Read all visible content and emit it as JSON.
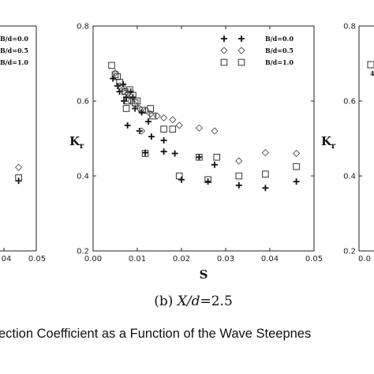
{
  "chart_data": [
    {
      "panel": "left (cropped)",
      "type": "scatter",
      "x_tick_labels_visible": [
        "04",
        "0.05"
      ],
      "legend_entries_visible": [
        "B/d=0.0",
        "B/d=0.5",
        "B/d=1.0"
      ],
      "series": [
        {
          "name": "B/d=0.0",
          "marker": "plus",
          "points": [
            [
              0.046,
              0.387
            ]
          ]
        },
        {
          "name": "B/d=0.5",
          "marker": "diamond",
          "points": [
            [
              0.046,
              0.423
            ]
          ]
        },
        {
          "name": "B/d=1.0",
          "marker": "square",
          "points": [
            [
              0.046,
              0.395
            ]
          ]
        }
      ]
    },
    {
      "panel": "b",
      "type": "scatter",
      "subtitle_prefix": "(b)",
      "subtitle_var": "X/d",
      "subtitle_value": "=2.5",
      "xlabel": "S",
      "ylabel_main": "K",
      "ylabel_sub": "r",
      "xlim": [
        0,
        0.05
      ],
      "ylim": [
        0.2,
        0.8
      ],
      "x_ticks": [
        "0.00",
        "0.01",
        "0.02",
        "0.03",
        "0.04",
        "0.05"
      ],
      "y_ticks": [
        "0.2",
        "0.4",
        "0.6",
        "0.8"
      ],
      "legend_position": "top-right",
      "series": [
        {
          "name": "B/d=0.0",
          "marker": "plus",
          "points": [
            [
              0.0045,
              0.66
            ],
            [
              0.0055,
              0.64
            ],
            [
              0.006,
              0.625
            ],
            [
              0.0068,
              0.645
            ],
            [
              0.007,
              0.6
            ],
            [
              0.0075,
              0.61
            ],
            [
              0.0078,
              0.535
            ],
            [
              0.0085,
              0.625
            ],
            [
              0.009,
              0.61
            ],
            [
              0.0095,
              0.58
            ],
            [
              0.0105,
              0.52
            ],
            [
              0.011,
              0.57
            ],
            [
              0.0118,
              0.462
            ],
            [
              0.0125,
              0.545
            ],
            [
              0.0132,
              0.505
            ],
            [
              0.016,
              0.495
            ],
            [
              0.016,
              0.465
            ],
            [
              0.0185,
              0.46
            ],
            [
              0.02,
              0.39
            ],
            [
              0.024,
              0.45
            ],
            [
              0.026,
              0.385
            ],
            [
              0.0275,
              0.43
            ],
            [
              0.033,
              0.375
            ],
            [
              0.039,
              0.368
            ],
            [
              0.046,
              0.385
            ]
          ]
        },
        {
          "name": "B/d=0.5",
          "marker": "diamond",
          "points": [
            [
              0.005,
              0.675
            ],
            [
              0.006,
              0.64
            ],
            [
              0.007,
              0.625
            ],
            [
              0.0078,
              0.62
            ],
            [
              0.0085,
              0.6
            ],
            [
              0.0095,
              0.59
            ],
            [
              0.0105,
              0.58
            ],
            [
              0.011,
              0.52
            ],
            [
              0.012,
              0.575
            ],
            [
              0.013,
              0.565
            ],
            [
              0.0145,
              0.56
            ],
            [
              0.016,
              0.555
            ],
            [
              0.018,
              0.55
            ],
            [
              0.0195,
              0.535
            ],
            [
              0.024,
              0.528
            ],
            [
              0.0275,
              0.52
            ],
            [
              0.033,
              0.44
            ],
            [
              0.039,
              0.462
            ],
            [
              0.046,
              0.46
            ]
          ]
        },
        {
          "name": "B/d=1.0",
          "marker": "square",
          "points": [
            [
              0.0042,
              0.695
            ],
            [
              0.005,
              0.67
            ],
            [
              0.0055,
              0.665
            ],
            [
              0.006,
              0.65
            ],
            [
              0.0065,
              0.635
            ],
            [
              0.0072,
              0.625
            ],
            [
              0.0075,
              0.58
            ],
            [
              0.0078,
              0.6
            ],
            [
              0.0083,
              0.63
            ],
            [
              0.009,
              0.615
            ],
            [
              0.0095,
              0.595
            ],
            [
              0.01,
              0.6
            ],
            [
              0.0112,
              0.575
            ],
            [
              0.0118,
              0.46
            ],
            [
              0.013,
              0.58
            ],
            [
              0.0135,
              0.56
            ],
            [
              0.016,
              0.525
            ],
            [
              0.018,
              0.525
            ],
            [
              0.0195,
              0.4
            ],
            [
              0.024,
              0.45
            ],
            [
              0.026,
              0.39
            ],
            [
              0.028,
              0.45
            ],
            [
              0.033,
              0.4
            ],
            [
              0.039,
              0.405
            ],
            [
              0.046,
              0.425
            ]
          ]
        }
      ]
    },
    {
      "panel": "right (cropped)",
      "type": "scatter",
      "ylabel_main": "K",
      "ylabel_sub": "r",
      "y_ticks": [
        "0.2",
        "0.4",
        "0.6",
        "0.8"
      ],
      "x_tick_labels_visible": [
        "0.0"
      ]
    }
  ],
  "caption_text": "ection Coefficient as a Function of the Wave Steepnes"
}
